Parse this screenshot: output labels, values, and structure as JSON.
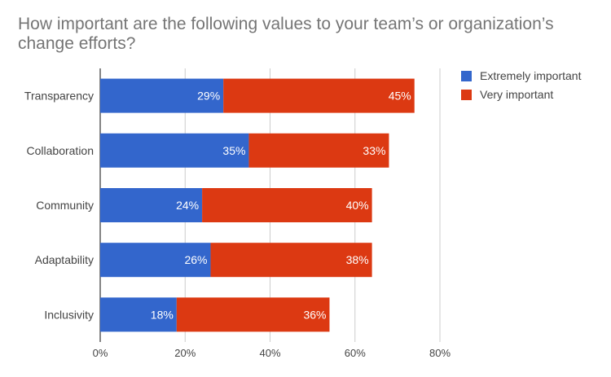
{
  "chart_data": {
    "type": "bar",
    "orientation": "horizontal",
    "stacked": true,
    "title": "How important are the following values to your team’s or organization’s change efforts?",
    "categories": [
      "Transparency",
      "Collaboration",
      "Community",
      "Adaptability",
      "Inclusivity"
    ],
    "series": [
      {
        "name": "Extremely important",
        "color": "#3366cc",
        "values": [
          29,
          35,
          24,
          26,
          18
        ],
        "labels": [
          "29%",
          "35%",
          "24%",
          "26%",
          "18%"
        ]
      },
      {
        "name": "Very important",
        "color": "#dc3912",
        "values": [
          45,
          33,
          40,
          38,
          36
        ],
        "labels": [
          "45%",
          "33%",
          "40%",
          "38%",
          "36%"
        ]
      }
    ],
    "xlim": [
      0,
      80
    ],
    "xticks": [
      0,
      20,
      40,
      60,
      80
    ],
    "xtick_labels": [
      "0%",
      "20%",
      "40%",
      "60%",
      "80%"
    ],
    "grid": true,
    "legend_position": "right"
  }
}
